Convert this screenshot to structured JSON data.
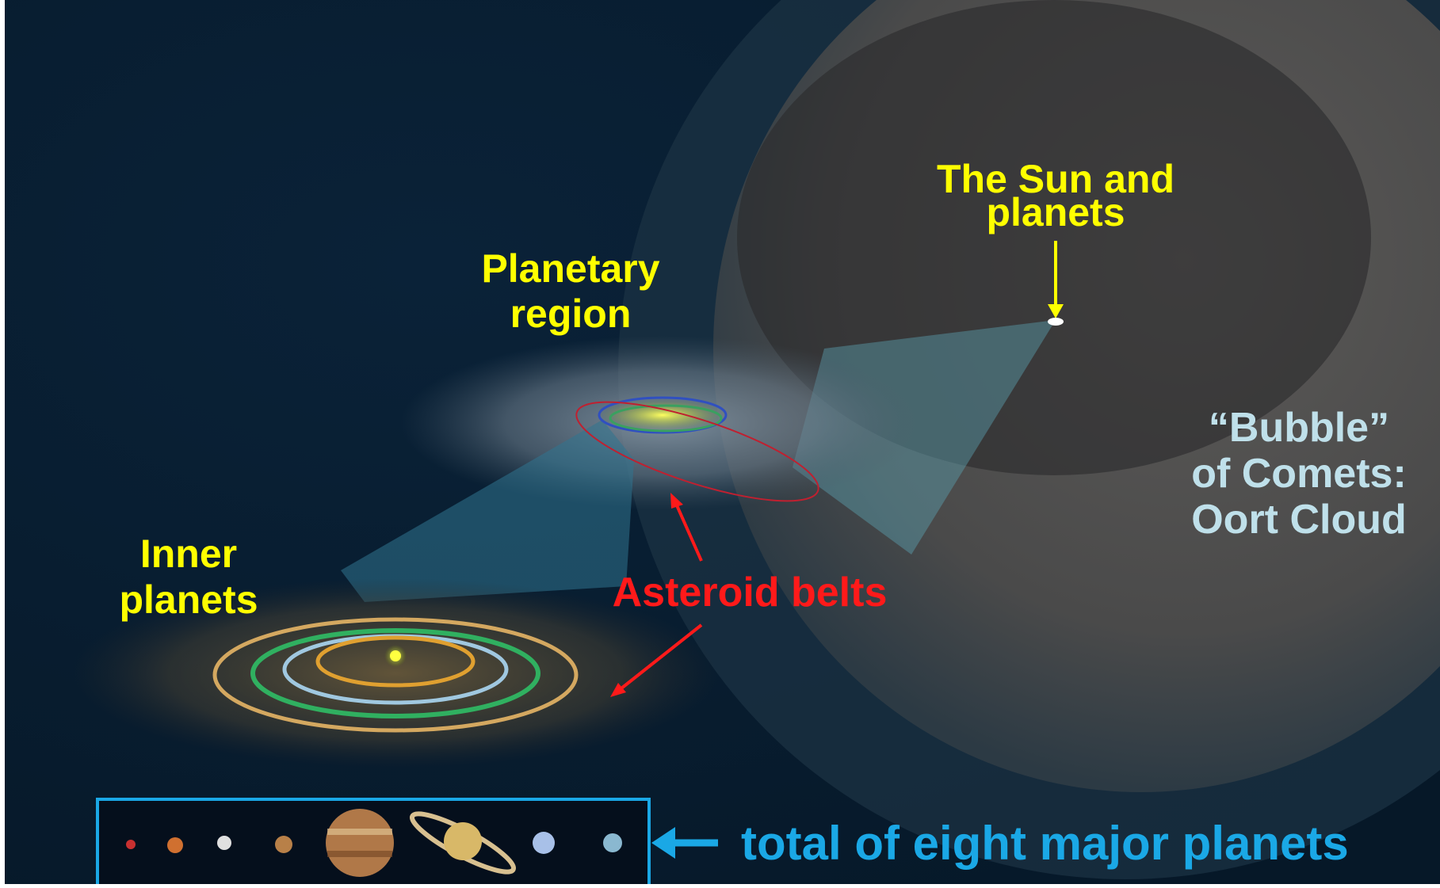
{
  "labels": {
    "sun_and_planets": [
      "The Sun and",
      "planets"
    ],
    "planetary_region": [
      "Planetary",
      "region"
    ],
    "inner_planets": [
      "Inner",
      "planets"
    ],
    "oort_cloud": [
      "“Bubble”",
      "of Comets:",
      "Oort Cloud"
    ],
    "asteroid_belts": "Asteroid belts",
    "planets_caption": "total of eight major planets"
  }
}
